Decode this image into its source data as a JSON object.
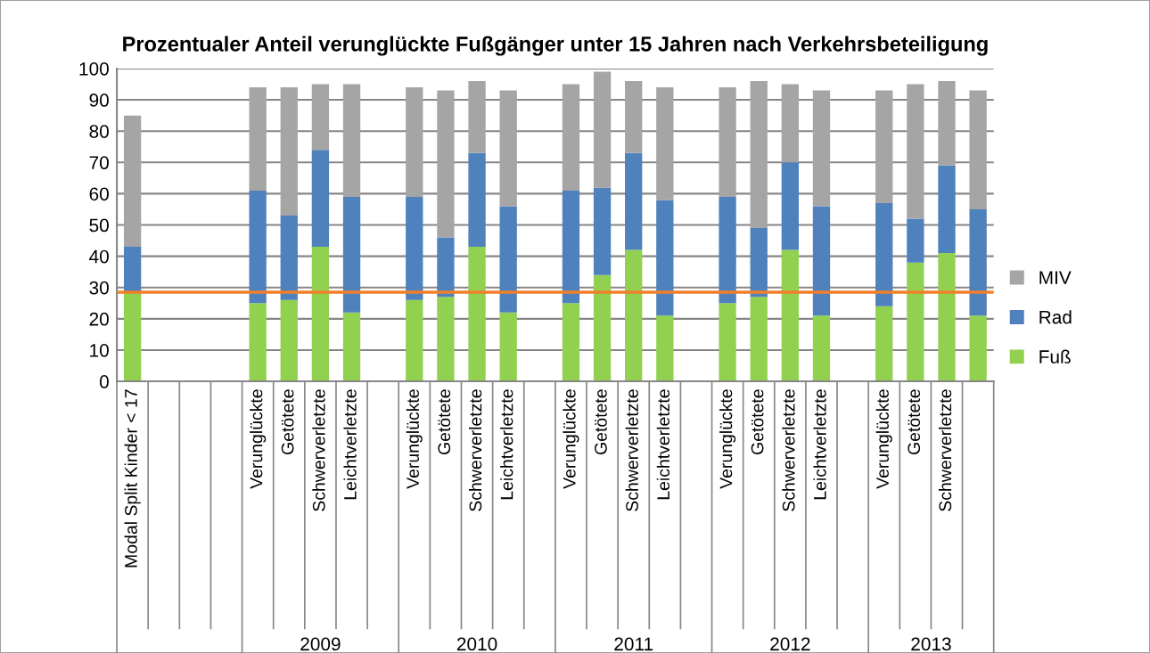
{
  "chart_data": {
    "type": "bar",
    "title": "Prozentualer Anteil verunglückte Fußgänger unter 15 Jahren nach Verkehrsbeteiligung",
    "categories": [
      "Modal Split Kinder < 17",
      null,
      null,
      null,
      "Verunglückte",
      "Getötete",
      "Schwerverletzte",
      "Leichtverletzte",
      null,
      "Verunglückte",
      "Getötete",
      "Schwerverletzte",
      "Leichtverletzte",
      null,
      "Verunglückte",
      "Getötete",
      "Schwerverletzte",
      "Leichtverletzte",
      null,
      "Verunglückte",
      "Getötete",
      "Schwerverletzte",
      "Leichtverletzte",
      null,
      "Verunglückte",
      "Getötete",
      "Schwerverletzte",
      null
    ],
    "stacked": true,
    "series": [
      {
        "name": "Fuß",
        "color": "#92d050",
        "values": [
          28.5,
          null,
          null,
          null,
          25,
          26,
          43,
          22,
          null,
          26,
          27,
          43,
          22,
          null,
          25,
          34,
          42,
          21,
          null,
          25,
          27,
          42,
          21,
          null,
          24,
          38,
          41,
          21
        ]
      },
      {
        "name": "Rad",
        "color": "#4f81bd",
        "values": [
          14.5,
          null,
          null,
          null,
          36,
          27,
          31,
          37,
          null,
          33,
          19,
          30,
          34,
          null,
          36,
          28,
          31,
          37,
          null,
          34,
          22,
          28,
          35,
          null,
          33,
          14,
          28,
          34
        ]
      },
      {
        "name": "MIV",
        "color": "#a5a5a5",
        "values": [
          42,
          null,
          null,
          null,
          33,
          41,
          21,
          36,
          null,
          35,
          47,
          23,
          37,
          null,
          34,
          37,
          23,
          36,
          null,
          35,
          47,
          25,
          37,
          null,
          36,
          43,
          27,
          38
        ]
      }
    ],
    "ylim": [
      0,
      100
    ],
    "yticks": [
      0,
      10,
      20,
      30,
      40,
      50,
      60,
      70,
      80,
      90,
      100
    ],
    "grid": "y",
    "legend": "right",
    "ref_lines": [
      {
        "axis": "y",
        "value": 28.5,
        "color": "#f07f2a"
      }
    ],
    "annotations": [
      "2009",
      "2010",
      "2011",
      "2012",
      "2013"
    ]
  }
}
